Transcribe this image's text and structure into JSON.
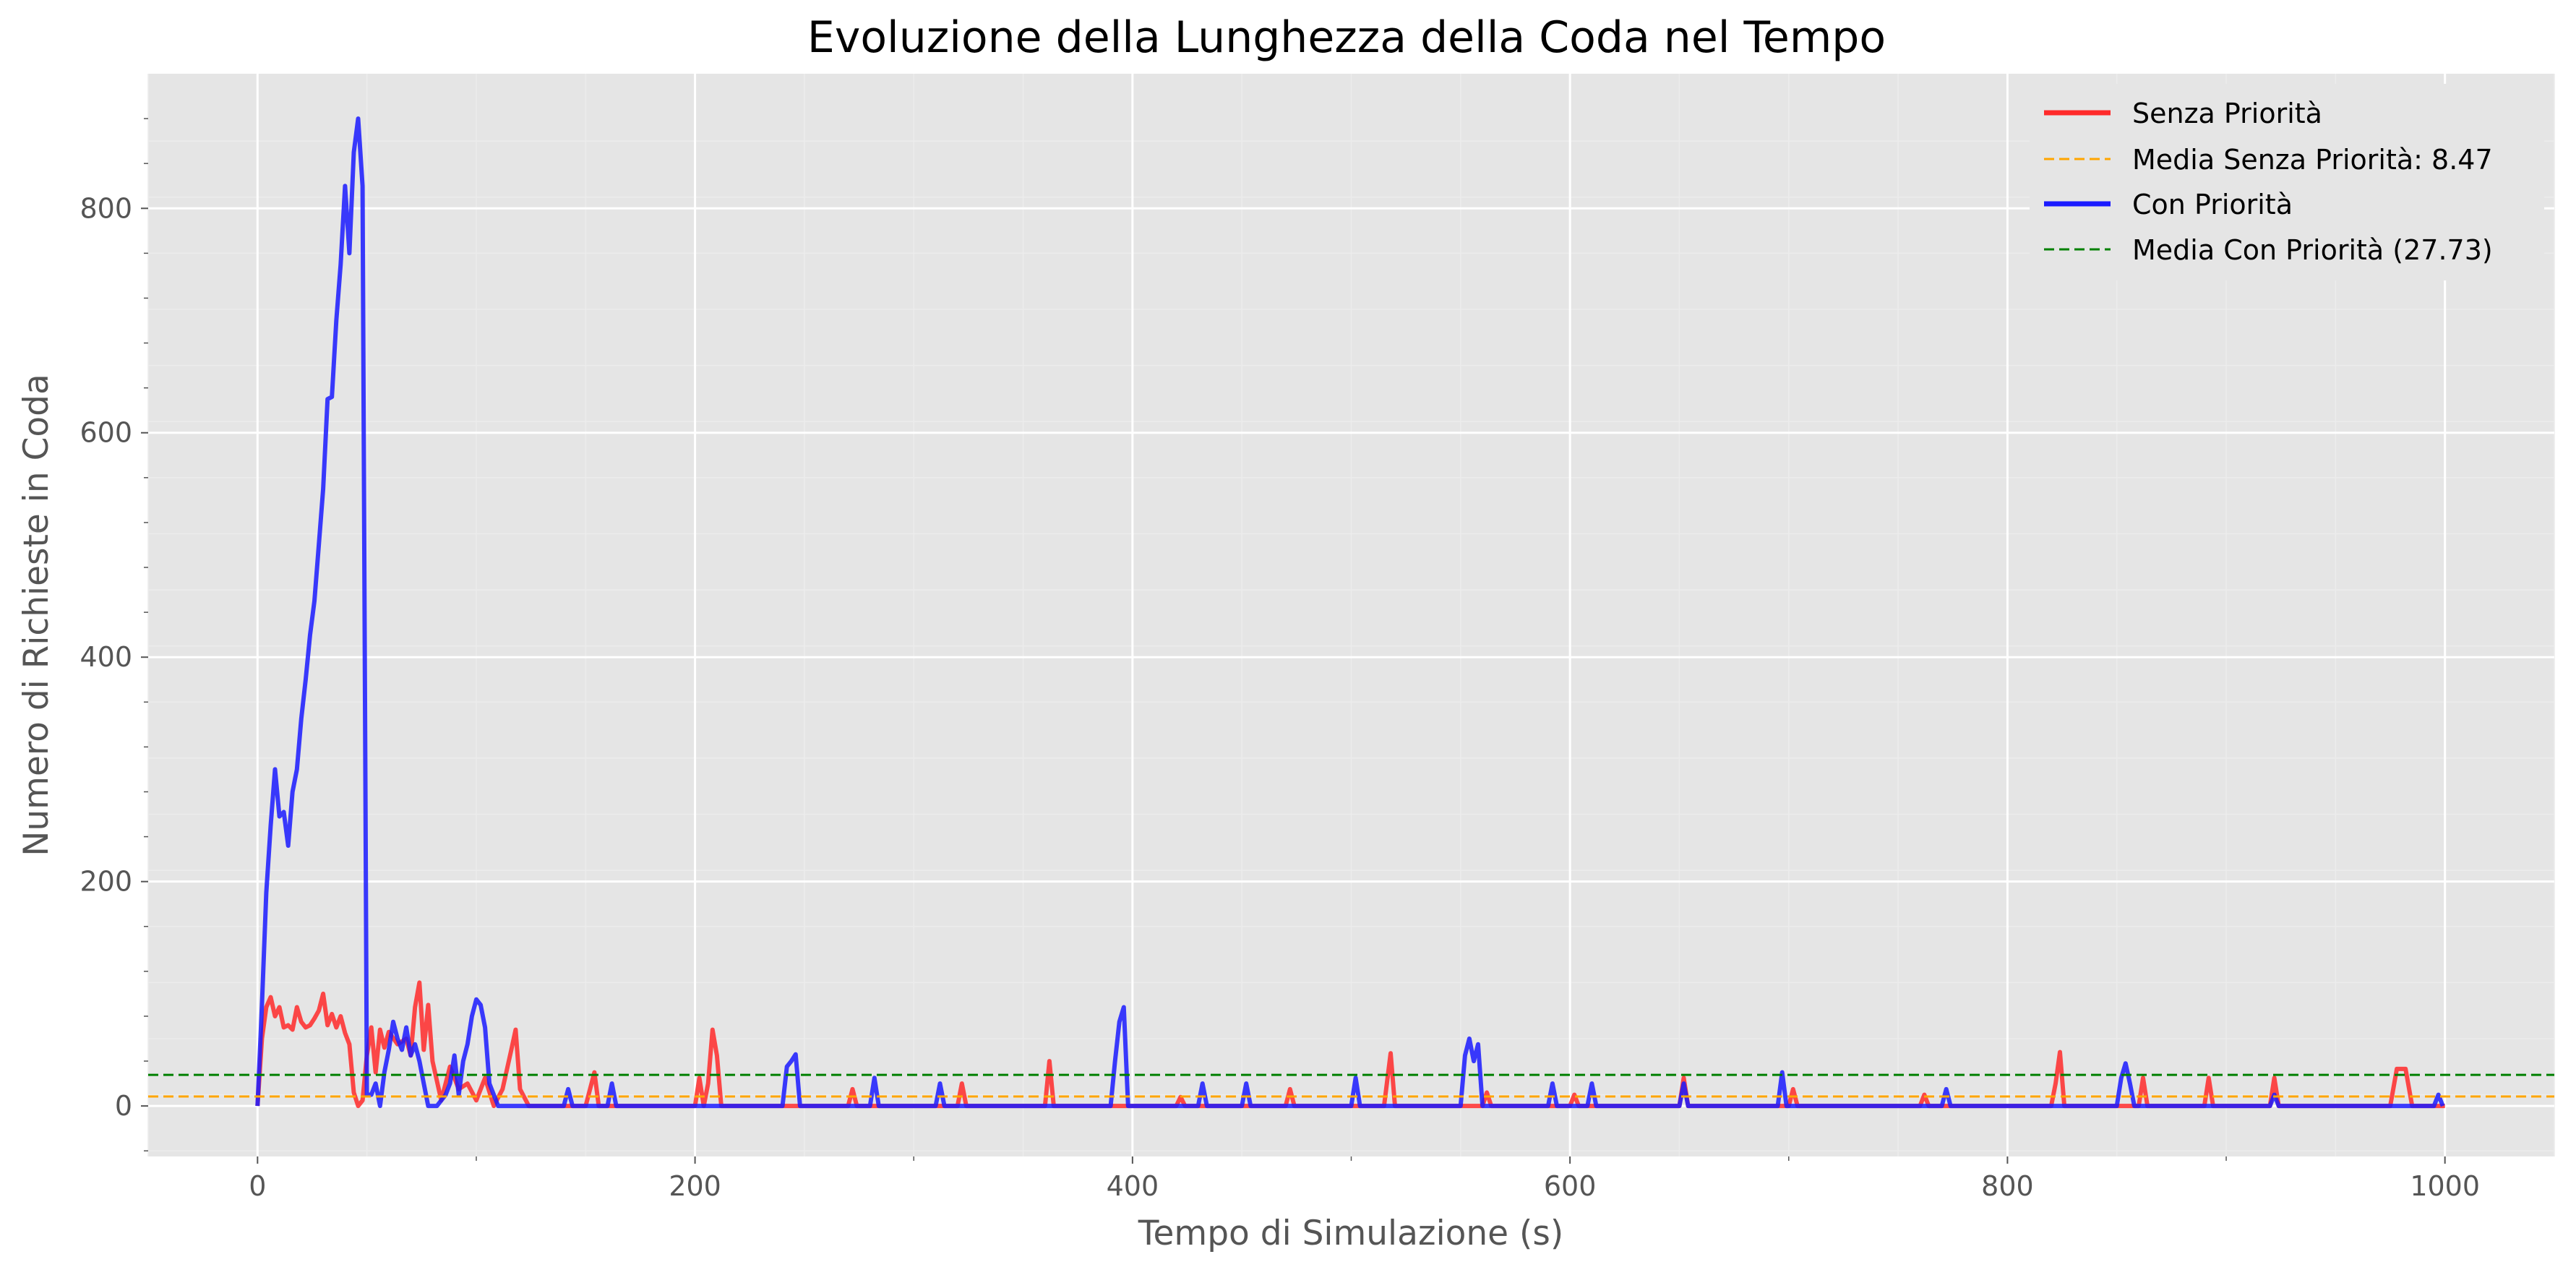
{
  "chart_data": {
    "type": "line",
    "title": "Evoluzione della Lunghezza della Coda nel Tempo",
    "xlabel": "Tempo di Simulazione (s)",
    "ylabel": "Numero di Richieste in Coda",
    "xlim": [
      -50,
      1050
    ],
    "ylim": [
      -45,
      920
    ],
    "xticks": [
      0,
      200,
      400,
      600,
      800,
      1000
    ],
    "yticks": [
      0,
      200,
      400,
      600,
      800
    ],
    "grid": true,
    "legend_position": "top-right",
    "series": [
      {
        "name": "Senza Priorità",
        "color": "#ff2a2a",
        "style": "solid",
        "points": [
          [
            0,
            0
          ],
          [
            2,
            60
          ],
          [
            4,
            88
          ],
          [
            6,
            97
          ],
          [
            8,
            80
          ],
          [
            10,
            88
          ],
          [
            12,
            70
          ],
          [
            14,
            72
          ],
          [
            16,
            68
          ],
          [
            18,
            88
          ],
          [
            20,
            75
          ],
          [
            22,
            70
          ],
          [
            24,
            72
          ],
          [
            26,
            78
          ],
          [
            28,
            85
          ],
          [
            30,
            100
          ],
          [
            32,
            72
          ],
          [
            34,
            82
          ],
          [
            36,
            70
          ],
          [
            38,
            80
          ],
          [
            40,
            65
          ],
          [
            42,
            55
          ],
          [
            44,
            12
          ],
          [
            46,
            0
          ],
          [
            48,
            5
          ],
          [
            50,
            45
          ],
          [
            52,
            70
          ],
          [
            54,
            30
          ],
          [
            56,
            68
          ],
          [
            58,
            52
          ],
          [
            60,
            66
          ],
          [
            64,
            55
          ],
          [
            68,
            60
          ],
          [
            70,
            45
          ],
          [
            72,
            88
          ],
          [
            74,
            110
          ],
          [
            76,
            50
          ],
          [
            78,
            90
          ],
          [
            80,
            40
          ],
          [
            84,
            5
          ],
          [
            88,
            35
          ],
          [
            92,
            15
          ],
          [
            96,
            20
          ],
          [
            100,
            5
          ],
          [
            104,
            25
          ],
          [
            108,
            0
          ],
          [
            112,
            15
          ],
          [
            116,
            50
          ],
          [
            118,
            68
          ],
          [
            120,
            15
          ],
          [
            124,
            0
          ],
          [
            150,
            0
          ],
          [
            154,
            30
          ],
          [
            156,
            0
          ],
          [
            200,
            0
          ],
          [
            202,
            25
          ],
          [
            204,
            0
          ],
          [
            206,
            20
          ],
          [
            208,
            68
          ],
          [
            210,
            45
          ],
          [
            212,
            0
          ],
          [
            270,
            0
          ],
          [
            272,
            15
          ],
          [
            274,
            0
          ],
          [
            320,
            0
          ],
          [
            322,
            20
          ],
          [
            324,
            0
          ],
          [
            360,
            0
          ],
          [
            362,
            40
          ],
          [
            364,
            0
          ],
          [
            420,
            0
          ],
          [
            422,
            8
          ],
          [
            424,
            0
          ],
          [
            470,
            0
          ],
          [
            472,
            15
          ],
          [
            474,
            0
          ],
          [
            515,
            0
          ],
          [
            518,
            47
          ],
          [
            520,
            0
          ],
          [
            560,
            0
          ],
          [
            562,
            12
          ],
          [
            564,
            0
          ],
          [
            600,
            0
          ],
          [
            602,
            10
          ],
          [
            604,
            0
          ],
          [
            650,
            0
          ],
          [
            652,
            25
          ],
          [
            654,
            0
          ],
          [
            700,
            0
          ],
          [
            702,
            15
          ],
          [
            704,
            0
          ],
          [
            760,
            0
          ],
          [
            762,
            10
          ],
          [
            764,
            0
          ],
          [
            820,
            0
          ],
          [
            822,
            20
          ],
          [
            824,
            48
          ],
          [
            826,
            0
          ],
          [
            860,
            0
          ],
          [
            862,
            25
          ],
          [
            864,
            0
          ],
          [
            890,
            0
          ],
          [
            892,
            25
          ],
          [
            894,
            0
          ],
          [
            920,
            0
          ],
          [
            922,
            25
          ],
          [
            924,
            0
          ],
          [
            975,
            0
          ],
          [
            978,
            33
          ],
          [
            982,
            33
          ],
          [
            985,
            0
          ],
          [
            1000,
            0
          ]
        ]
      },
      {
        "name": "Media Senza Priorità: 8.47",
        "color": "#ffa500",
        "style": "dashed",
        "y": 8.47
      },
      {
        "name": "Con Priorità",
        "color": "#1a1aff",
        "style": "solid",
        "points": [
          [
            0,
            0
          ],
          [
            2,
            90
          ],
          [
            4,
            190
          ],
          [
            6,
            250
          ],
          [
            8,
            300
          ],
          [
            10,
            258
          ],
          [
            12,
            262
          ],
          [
            14,
            232
          ],
          [
            16,
            280
          ],
          [
            18,
            300
          ],
          [
            20,
            345
          ],
          [
            22,
            380
          ],
          [
            24,
            420
          ],
          [
            26,
            450
          ],
          [
            28,
            500
          ],
          [
            30,
            550
          ],
          [
            32,
            630
          ],
          [
            34,
            632
          ],
          [
            36,
            700
          ],
          [
            38,
            750
          ],
          [
            40,
            820
          ],
          [
            42,
            760
          ],
          [
            44,
            850
          ],
          [
            46,
            880
          ],
          [
            48,
            820
          ],
          [
            50,
            10
          ],
          [
            52,
            10
          ],
          [
            54,
            20
          ],
          [
            56,
            0
          ],
          [
            58,
            30
          ],
          [
            60,
            50
          ],
          [
            62,
            75
          ],
          [
            64,
            60
          ],
          [
            66,
            50
          ],
          [
            68,
            70
          ],
          [
            70,
            45
          ],
          [
            72,
            55
          ],
          [
            74,
            40
          ],
          [
            76,
            20
          ],
          [
            78,
            0
          ],
          [
            82,
            0
          ],
          [
            86,
            10
          ],
          [
            88,
            20
          ],
          [
            90,
            45
          ],
          [
            92,
            10
          ],
          [
            94,
            40
          ],
          [
            96,
            55
          ],
          [
            98,
            80
          ],
          [
            100,
            95
          ],
          [
            102,
            90
          ],
          [
            104,
            70
          ],
          [
            106,
            20
          ],
          [
            110,
            0
          ],
          [
            140,
            0
          ],
          [
            142,
            15
          ],
          [
            144,
            0
          ],
          [
            160,
            0
          ],
          [
            162,
            20
          ],
          [
            164,
            0
          ],
          [
            240,
            0
          ],
          [
            242,
            35
          ],
          [
            244,
            40
          ],
          [
            246,
            46
          ],
          [
            248,
            0
          ],
          [
            280,
            0
          ],
          [
            282,
            25
          ],
          [
            284,
            0
          ],
          [
            310,
            0
          ],
          [
            312,
            20
          ],
          [
            314,
            0
          ],
          [
            390,
            0
          ],
          [
            392,
            40
          ],
          [
            394,
            75
          ],
          [
            396,
            88
          ],
          [
            398,
            0
          ],
          [
            430,
            0
          ],
          [
            432,
            20
          ],
          [
            434,
            0
          ],
          [
            450,
            0
          ],
          [
            452,
            20
          ],
          [
            454,
            0
          ],
          [
            500,
            0
          ],
          [
            502,
            25
          ],
          [
            504,
            0
          ],
          [
            550,
            0
          ],
          [
            552,
            45
          ],
          [
            554,
            60
          ],
          [
            556,
            40
          ],
          [
            558,
            55
          ],
          [
            560,
            0
          ],
          [
            590,
            0
          ],
          [
            592,
            20
          ],
          [
            594,
            0
          ],
          [
            608,
            0
          ],
          [
            610,
            20
          ],
          [
            612,
            0
          ],
          [
            650,
            0
          ],
          [
            652,
            20
          ],
          [
            654,
            0
          ],
          [
            695,
            0
          ],
          [
            697,
            30
          ],
          [
            699,
            0
          ],
          [
            770,
            0
          ],
          [
            772,
            15
          ],
          [
            774,
            0
          ],
          [
            850,
            0
          ],
          [
            852,
            25
          ],
          [
            854,
            38
          ],
          [
            856,
            20
          ],
          [
            858,
            0
          ],
          [
            920,
            0
          ],
          [
            922,
            10
          ],
          [
            924,
            0
          ],
          [
            995,
            0
          ],
          [
            997,
            10
          ],
          [
            999,
            0
          ]
        ]
      },
      {
        "name": "Media Con Priorità (27.73)",
        "color": "#008000",
        "style": "dashed",
        "y": 27.73
      }
    ]
  }
}
